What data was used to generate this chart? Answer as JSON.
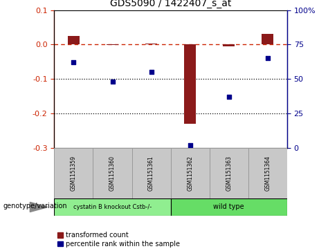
{
  "title": "GDS5090 / 1422407_s_at",
  "samples": [
    "GSM1151359",
    "GSM1151360",
    "GSM1151361",
    "GSM1151362",
    "GSM1151363",
    "GSM1151364"
  ],
  "red_values": [
    0.025,
    -0.002,
    0.002,
    -0.23,
    -0.005,
    0.03
  ],
  "blue_values": [
    62,
    48,
    55,
    2,
    37,
    65
  ],
  "ylim_left": [
    -0.3,
    0.1
  ],
  "ylim_right": [
    0,
    100
  ],
  "yticks_left": [
    -0.3,
    -0.2,
    -0.1,
    0.0,
    0.1
  ],
  "yticks_right": [
    0,
    25,
    50,
    75,
    100
  ],
  "red_color": "#8B1A1A",
  "blue_color": "#00008B",
  "dashed_line_color": "#CC2200",
  "group1_label": "cystatin B knockout Cstb-/-",
  "group2_label": "wild type",
  "group1_color": "#90EE90",
  "group2_color": "#66DD66",
  "legend_red": "transformed count",
  "legend_blue": "percentile rank within the sample",
  "genotype_label": "genotype/variation",
  "bar_width": 0.3
}
